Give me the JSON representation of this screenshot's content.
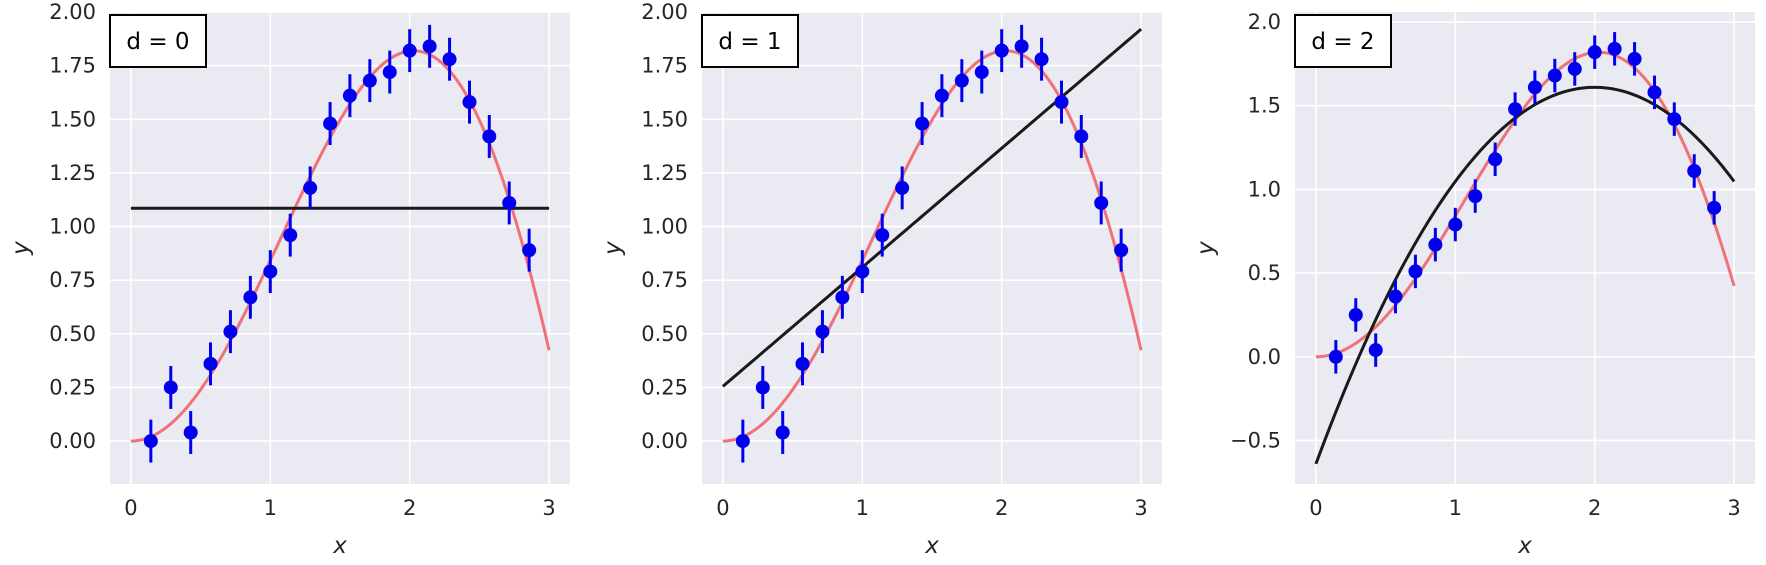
{
  "colors": {
    "plot_background": "#eaeaf2",
    "grid": "#ffffff",
    "true_curve": "#f07178",
    "points": "#0000ee",
    "fit_line": "#1a1a1a",
    "text": "#262626"
  },
  "chart_data": [
    {
      "type": "scatter",
      "title": "d = 0",
      "xlabel": "x",
      "ylabel": "y",
      "xlim": [
        -0.15,
        3.15
      ],
      "ylim": [
        -0.2,
        2.0
      ],
      "xticks": [
        0,
        1,
        2,
        3
      ],
      "xtick_labels": [
        "0",
        "1",
        "2",
        "3"
      ],
      "yticks": [
        0.0,
        0.25,
        0.5,
        0.75,
        1.0,
        1.25,
        1.5,
        1.75,
        2.0
      ],
      "ytick_labels": [
        "0.00",
        "0.25",
        "0.50",
        "0.75",
        "1.00",
        "1.25",
        "1.50",
        "1.75",
        "2.00"
      ],
      "grid": true,
      "legend_placement": "top-left",
      "fit_coefficients": [
        1.085
      ],
      "fit_x_range": [
        0,
        3
      ]
    },
    {
      "type": "scatter",
      "title": "d = 1",
      "xlabel": "x",
      "ylabel": "y",
      "xlim": [
        -0.15,
        3.15
      ],
      "ylim": [
        -0.2,
        2.0
      ],
      "xticks": [
        0,
        1,
        2,
        3
      ],
      "xtick_labels": [
        "0",
        "1",
        "2",
        "3"
      ],
      "yticks": [
        0.0,
        0.25,
        0.5,
        0.75,
        1.0,
        1.25,
        1.5,
        1.75,
        2.0
      ],
      "ytick_labels": [
        "0.00",
        "0.25",
        "0.50",
        "0.75",
        "1.00",
        "1.25",
        "1.50",
        "1.75",
        "2.00"
      ],
      "grid": true,
      "legend_placement": "top-left",
      "fit_coefficients": [
        0.255,
        0.555
      ],
      "fit_x_range": [
        0,
        3
      ]
    },
    {
      "type": "scatter",
      "title": "d = 2",
      "xlabel": "x",
      "ylabel": "y",
      "xlim": [
        -0.15,
        3.15
      ],
      "ylim": [
        -0.76,
        2.06
      ],
      "xticks": [
        0,
        1,
        2,
        3
      ],
      "xtick_labels": [
        "0",
        "1",
        "2",
        "3"
      ],
      "yticks": [
        -0.5,
        0.0,
        0.5,
        1.0,
        1.5,
        2.0
      ],
      "ytick_labels": [
        "−0.5",
        "0.0",
        "0.5",
        "1.0",
        "1.5",
        "2.0"
      ],
      "grid": true,
      "legend_placement": "top-left",
      "fit_coefficients": [
        -0.64,
        2.25,
        -0.5625
      ],
      "fit_x_range": [
        0,
        3
      ]
    }
  ],
  "shared_data": {
    "points_x": [
      0.143,
      0.286,
      0.429,
      0.571,
      0.714,
      0.857,
      1.0,
      1.143,
      1.286,
      1.429,
      1.571,
      1.714,
      1.857,
      2.0,
      2.143,
      2.286,
      2.429,
      2.571,
      2.714,
      2.857
    ],
    "points_y": [
      0.0,
      0.25,
      0.04,
      0.36,
      0.51,
      0.67,
      0.79,
      0.96,
      1.18,
      1.48,
      1.61,
      1.68,
      1.72,
      1.82,
      1.84,
      1.78,
      1.58,
      1.42,
      1.11,
      0.89
    ],
    "error": 0.1,
    "true_function": "x*sin(x)",
    "true_x_range": [
      0,
      3
    ]
  }
}
